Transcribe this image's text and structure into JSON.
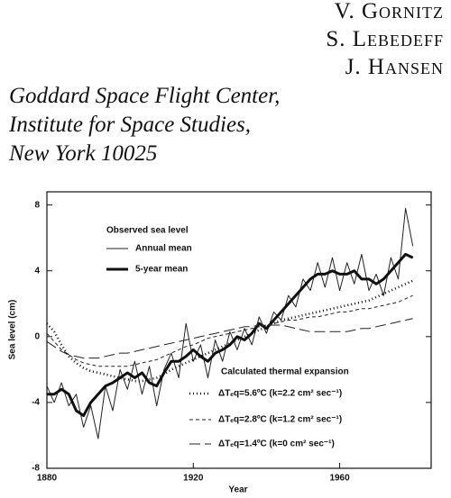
{
  "header": {
    "authors": [
      "V. Gornitz",
      "S. Lebedeff",
      "J. Hansen"
    ],
    "affiliation": [
      "Goddard Space Flight Center,",
      "Institute for Space Studies,",
      "New York 10025"
    ]
  },
  "chart_data": {
    "type": "line",
    "xlabel": "Year",
    "ylabel": "Sea level (cm)",
    "xlim": [
      1880,
      1985
    ],
    "ylim": [
      -8,
      8.8
    ],
    "xticks": [
      1880,
      1920,
      1960
    ],
    "yticks": [
      -8,
      -4,
      0,
      4,
      8
    ],
    "annotations": [
      "Observed sea level",
      "Calculated thermal expansion"
    ],
    "x": [
      1880,
      1882,
      1884,
      1886,
      1888,
      1890,
      1892,
      1894,
      1896,
      1898,
      1900,
      1902,
      1904,
      1906,
      1908,
      1910,
      1912,
      1914,
      1916,
      1918,
      1920,
      1922,
      1924,
      1926,
      1928,
      1930,
      1932,
      1934,
      1936,
      1938,
      1940,
      1942,
      1944,
      1946,
      1948,
      1950,
      1952,
      1954,
      1956,
      1958,
      1960,
      1962,
      1964,
      1966,
      1968,
      1970,
      1972,
      1974,
      1976,
      1978,
      1980
    ],
    "series": [
      {
        "name": "Annual mean",
        "color": "#222222",
        "width": 1,
        "dash": "none",
        "values": [
          -3.0,
          -4.0,
          -2.8,
          -4.2,
          -3.5,
          -5.5,
          -4.2,
          -6.2,
          -3.0,
          -4.5,
          -2.0,
          -3.2,
          -1.5,
          -3.5,
          -1.8,
          -4.2,
          -2.0,
          -1.0,
          -2.5,
          0.8,
          -1.5,
          -0.5,
          -2.5,
          -0.2,
          -1.5,
          0.3,
          -0.8,
          0.5,
          -0.5,
          1.2,
          0.2,
          1.5,
          1.0,
          2.5,
          1.8,
          3.5,
          2.8,
          4.5,
          3.0,
          4.8,
          2.8,
          4.5,
          3.2,
          5.0,
          2.8,
          3.8,
          2.5,
          4.8,
          3.5,
          7.8,
          5.5
        ]
      },
      {
        "name": "5-year mean",
        "color": "#111111",
        "width": 3,
        "dash": "none",
        "values": [
          -3.5,
          -3.5,
          -3.2,
          -3.5,
          -4.5,
          -4.8,
          -4.0,
          -3.5,
          -3.0,
          -2.8,
          -2.5,
          -2.2,
          -2.5,
          -2.2,
          -2.8,
          -3.0,
          -2.2,
          -1.5,
          -1.5,
          -1.2,
          -0.8,
          -1.2,
          -1.5,
          -1.0,
          -0.8,
          -0.5,
          0.0,
          -0.2,
          0.2,
          0.8,
          0.5,
          1.0,
          1.5,
          2.0,
          2.5,
          3.0,
          3.5,
          3.8,
          3.8,
          4.0,
          3.8,
          3.8,
          4.0,
          3.5,
          3.5,
          3.2,
          3.5,
          4.0,
          4.5,
          5.0,
          4.8
        ]
      },
      {
        "name": "ΔTₑq=5.6ºC (k=2.2 cm² sec⁻¹)",
        "color": "#111111",
        "width": 2.6,
        "dash": "1 3",
        "values": [
          0.8,
          0.3,
          -0.5,
          -1.2,
          -1.6,
          -1.9,
          -2.1,
          -2.2,
          -2.3,
          -2.4,
          -2.5,
          -2.6,
          -2.7,
          -2.7,
          -2.6,
          -2.5,
          -2.3,
          -2.0,
          -1.8,
          -1.6,
          -1.4,
          -1.2,
          -1.0,
          -0.8,
          -0.6,
          -0.4,
          -0.2,
          0.0,
          0.2,
          0.4,
          0.6,
          0.8,
          1.0,
          1.1,
          1.2,
          1.3,
          1.4,
          1.5,
          1.6,
          1.7,
          1.8,
          1.9,
          2.0,
          2.1,
          2.2,
          2.4,
          2.6,
          2.8,
          3.0,
          3.2,
          3.4
        ]
      },
      {
        "name": "ΔTₑq=2.8ºC (k=1.2 cm² sec⁻¹)",
        "color": "#222222",
        "width": 1,
        "dash": "4 3",
        "values": [
          0.2,
          -0.3,
          -0.8,
          -1.1,
          -1.4,
          -1.6,
          -1.7,
          -1.8,
          -1.8,
          -1.8,
          -1.8,
          -1.8,
          -1.7,
          -1.6,
          -1.5,
          -1.4,
          -1.2,
          -1.0,
          -0.8,
          -0.6,
          -0.5,
          -0.3,
          -0.1,
          0.0,
          0.1,
          0.2,
          0.3,
          0.4,
          0.5,
          0.6,
          0.7,
          0.8,
          0.9,
          1.0,
          1.0,
          1.1,
          1.2,
          1.2,
          1.3,
          1.4,
          1.5,
          1.5,
          1.6,
          1.7,
          1.7,
          1.8,
          1.9,
          2.0,
          2.1,
          2.3,
          2.5
        ]
      },
      {
        "name": "ΔTₑq=1.4ºC (k=0 cm² sec⁻¹)",
        "color": "#222222",
        "width": 1,
        "dash": "12 5",
        "values": [
          -0.3,
          -0.6,
          -0.9,
          -1.1,
          -1.2,
          -1.3,
          -1.3,
          -1.3,
          -1.2,
          -1.1,
          -1.0,
          -1.0,
          -0.9,
          -0.8,
          -0.7,
          -0.6,
          -0.5,
          -0.4,
          -0.3,
          -0.2,
          -0.1,
          0.0,
          0.1,
          0.2,
          0.3,
          0.4,
          0.5,
          0.6,
          0.6,
          0.7,
          0.7,
          0.7,
          0.7,
          0.6,
          0.5,
          0.4,
          0.3,
          0.3,
          0.3,
          0.3,
          0.3,
          0.3,
          0.4,
          0.5,
          0.5,
          0.6,
          0.7,
          0.8,
          0.9,
          1.0,
          1.1
        ]
      }
    ]
  }
}
